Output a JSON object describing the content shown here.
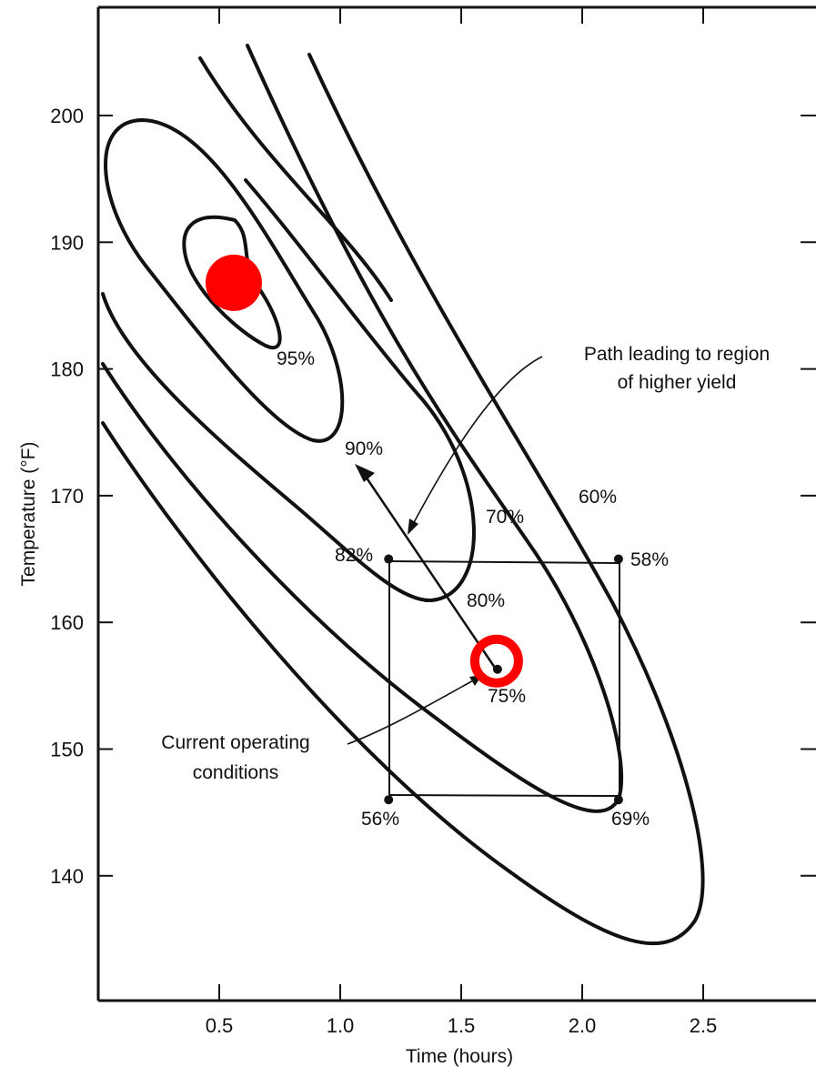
{
  "chart_data": {
    "type": "contour",
    "title": "",
    "xlabel": "Time (hours)",
    "ylabel": "Temperature (°F)",
    "xlim": [
      0,
      3
    ],
    "ylim": [
      130,
      205
    ],
    "x_ticks": [
      "0.5",
      "1.0",
      "1.5",
      "2.0",
      "2.5"
    ],
    "y_ticks": [
      "140",
      "150",
      "160",
      "170",
      "180",
      "190",
      "200"
    ],
    "contours": [
      {
        "label": "95%",
        "label_at": [
          0.85,
          180.8
        ]
      },
      {
        "label": "90%",
        "label_at": [
          1.0,
          174.6
        ]
      },
      {
        "label": "80%",
        "label_at": [
          1.58,
          162.0
        ]
      },
      {
        "label": "70%",
        "label_at": [
          1.73,
          168.2
        ]
      },
      {
        "label": "60%",
        "label_at": [
          2.06,
          170.0
        ]
      }
    ],
    "design_points": [
      {
        "time": 1.2,
        "temp": 165,
        "yield": "82%"
      },
      {
        "time": 2.15,
        "temp": 165,
        "yield": "58%"
      },
      {
        "time": 1.2,
        "temp": 146,
        "yield": "56%"
      },
      {
        "time": 2.15,
        "temp": 146,
        "yield": "69%"
      }
    ],
    "center_point": {
      "time": 1.65,
      "temp": 156.3,
      "yield": "75%"
    },
    "optimum": {
      "time": 0.56,
      "temp": 186.8
    },
    "steepest_ascent": {
      "from": [
        1.65,
        156.3
      ],
      "to": [
        1.06,
        172.2
      ]
    },
    "annotations": {
      "path": [
        "Path leading to region",
        "of higher yield"
      ],
      "current": [
        "Current operating",
        "conditions"
      ]
    },
    "highlight_color": "#ff0000"
  }
}
